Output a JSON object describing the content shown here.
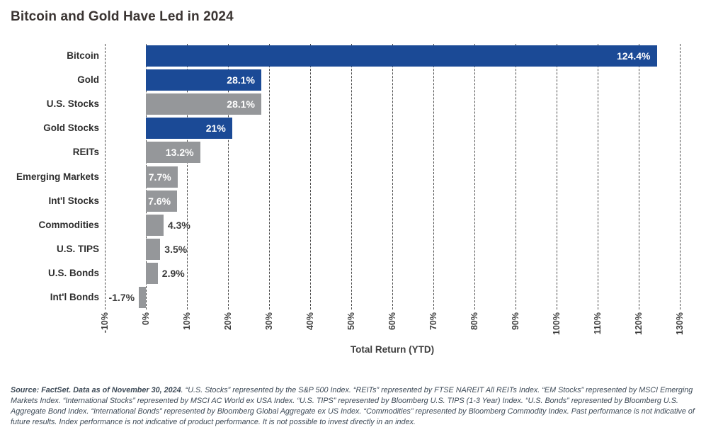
{
  "title": "Bitcoin and Gold Have Led in 2024",
  "chart_data": {
    "type": "bar",
    "orientation": "horizontal",
    "title": "Bitcoin and Gold Have Led in 2024",
    "xlabel": "Total Return (YTD)",
    "ylabel": "",
    "xlim": [
      -10,
      130
    ],
    "grid": "dashed-vertical",
    "legend": "none",
    "categories": [
      "Bitcoin",
      "Gold",
      "U.S. Stocks",
      "Gold Stocks",
      "REITs",
      "Emerging Markets",
      "Int'l Stocks",
      "Commodities",
      "U.S. TIPS",
      "U.S. Bonds",
      "Int'l Bonds"
    ],
    "values": [
      124.4,
      28.1,
      28.1,
      21,
      13.2,
      7.7,
      7.6,
      4.3,
      3.5,
      2.9,
      -1.7
    ],
    "value_labels": [
      "124.4%",
      "28.1%",
      "28.1%",
      "21%",
      "13.2%",
      "7.7%",
      "7.6%",
      "4.3%",
      "3.5%",
      "2.9%",
      "-1.7%"
    ],
    "highlighted": [
      true,
      true,
      false,
      true,
      false,
      false,
      false,
      false,
      false,
      false,
      false
    ],
    "colors": {
      "highlight": "#1b4a96",
      "default": "#95979a"
    },
    "x_tick_labels": [
      "-10%",
      "0%",
      "10%",
      "20%",
      "30%",
      "40%",
      "50%",
      "60%",
      "70%",
      "80%",
      "90%",
      "100%",
      "110%",
      "120%",
      "130%"
    ],
    "x_tick_values": [
      -10,
      0,
      10,
      20,
      30,
      40,
      50,
      60,
      70,
      80,
      90,
      100,
      110,
      120,
      130
    ]
  },
  "footer": {
    "source_bold": "Source: FactSet. Data as of November 30, 2024",
    "text": ". “U.S. Stocks” represented by the S&P 500 Index. “REITs” represented by FTSE NAREIT All REITs Index. “EM Stocks” represented by MSCI Emerging Markets Index. “International Stocks” represented by MSCI AC World ex USA Index. “U.S. TIPS” represented by Bloomberg U.S. TIPS (1-3 Year) Index. “U.S. Bonds” represented by Bloomberg U.S. Aggregate Bond Index. “International Bonds” represented by Bloomberg Global Aggregate ex US Index. “Commodities” represented by Bloomberg Commodity Index. Past performance is not indicative of future results. Index performance is not indicative of product performance. It is not possible to invest directly in an index."
  }
}
